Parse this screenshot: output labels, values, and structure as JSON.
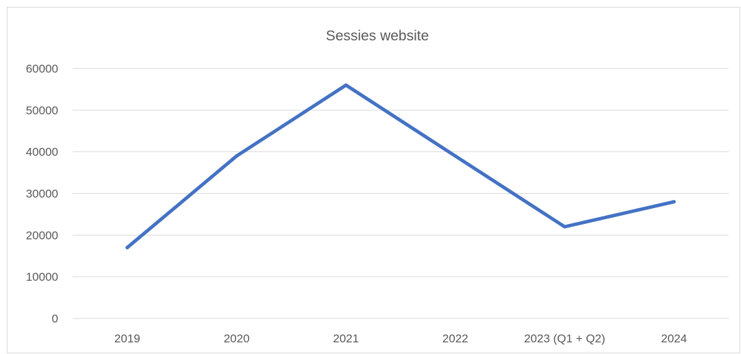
{
  "chart_data": {
    "type": "line",
    "title": "Sessies website",
    "xlabel": "",
    "ylabel": "",
    "categories": [
      "2019",
      "2020",
      "2021",
      "2022",
      "2023 (Q1 + Q2)",
      "2024"
    ],
    "series": [
      {
        "values": [
          17000,
          39000,
          56000,
          39000,
          22000,
          28000
        ],
        "color": "#4472C4"
      }
    ],
    "ylim": [
      0,
      60000
    ],
    "yticks": [
      0,
      10000,
      20000,
      30000,
      40000,
      50000,
      60000
    ],
    "ytick_labels": [
      "0",
      "10000",
      "20000",
      "30000",
      "40000",
      "50000",
      "60000"
    ],
    "grid": true,
    "legend": "none"
  }
}
